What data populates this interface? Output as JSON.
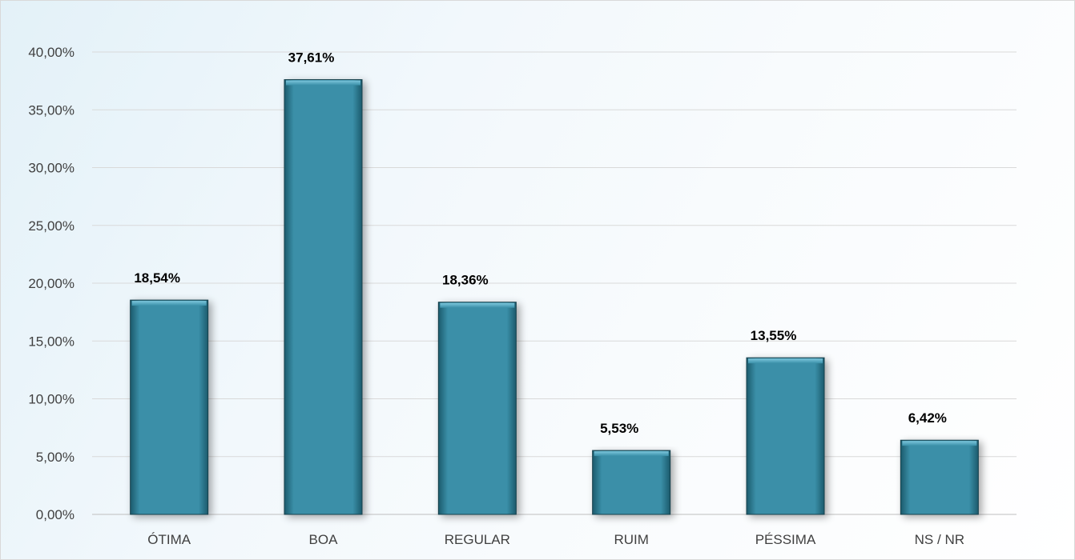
{
  "chart_data": {
    "type": "bar",
    "categories": [
      "ÓTIMA",
      "BOA",
      "REGULAR",
      "RUIM",
      "PÉSSIMA",
      "NS / NR"
    ],
    "values": [
      18.54,
      37.61,
      18.36,
      5.53,
      13.55,
      6.42
    ],
    "data_labels": [
      "18,54%",
      "37,61%",
      "18,36%",
      "5,53%",
      "13,55%",
      "6,42%"
    ],
    "yticks": [
      0,
      5,
      10,
      15,
      20,
      25,
      30,
      35,
      40
    ],
    "ytick_labels": [
      "0,00%",
      "5,00%",
      "10,00%",
      "15,00%",
      "20,00%",
      "25,00%",
      "30,00%",
      "35,00%",
      "40,00%"
    ],
    "ylim": [
      0,
      40
    ],
    "title": "",
    "xlabel": "",
    "ylabel": "",
    "grid": true,
    "legend": "none",
    "bar_color": "#3a8fa8",
    "bar_top_color": "#5fb3cc"
  }
}
